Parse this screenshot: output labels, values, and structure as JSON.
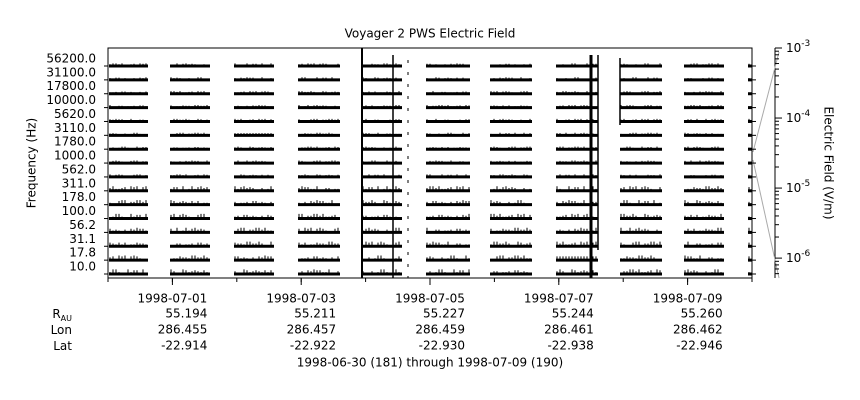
{
  "chart_data": {
    "type": "spectrum",
    "title": "Voyager 2 PWS Electric Field",
    "y_label": "Frequency (Hz)",
    "y2_label": "Electric Field (V/m)",
    "categories": [
      "10.0",
      "17.8",
      "31.1",
      "56.2",
      "100.0",
      "178.0",
      "311.0",
      "562.0",
      "1000.0",
      "1780.0",
      "3110.0",
      "5620.0",
      "10000.0",
      "17800.0",
      "31100.0",
      "56200.0"
    ],
    "x": [
      "1998-07-01",
      "1998-07-03",
      "1998-07-05",
      "1998-07-07",
      "1998-07-09"
    ],
    "y2_log": true,
    "y2lim": [
      5.2e-07,
      0.001
    ],
    "y2ticks": [
      {
        "value": 0.001,
        "label": "10",
        "exponent": "-3"
      },
      {
        "value": 0.0001,
        "label": "10",
        "exponent": "-4"
      },
      {
        "value": 1e-05,
        "label": "10",
        "exponent": "-5"
      },
      {
        "value": 1e-06,
        "label": "10",
        "exponent": "-6"
      }
    ],
    "ephemeris": [
      {
        "label": "R",
        "subscript": "AU",
        "values": [
          "55.194",
          "55.211",
          "55.227",
          "55.244",
          "55.260"
        ]
      },
      {
        "label": "Lon",
        "values": [
          "286.455",
          "286.457",
          "286.459",
          "286.461",
          "286.462"
        ]
      },
      {
        "label": "Lat",
        "values": [
          "-22.914",
          "-22.922",
          "-22.930",
          "-22.938",
          "-22.946"
        ]
      }
    ],
    "time_range": "1998-06-30 (181) through 1998-07-09 (190)"
  }
}
